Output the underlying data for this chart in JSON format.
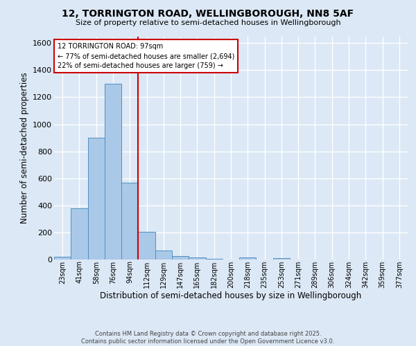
{
  "title": "12, TORRINGTON ROAD, WELLINGBOROUGH, NN8 5AF",
  "subtitle": "Size of property relative to semi-detached houses in Wellingborough",
  "xlabel": "Distribution of semi-detached houses by size in Wellingborough",
  "ylabel": "Number of semi-detached properties",
  "footer_line1": "Contains HM Land Registry data © Crown copyright and database right 2025.",
  "footer_line2": "Contains public sector information licensed under the Open Government Licence v3.0.",
  "bin_labels": [
    "23sqm",
    "41sqm",
    "58sqm",
    "76sqm",
    "94sqm",
    "112sqm",
    "129sqm",
    "147sqm",
    "165sqm",
    "182sqm",
    "200sqm",
    "218sqm",
    "235sqm",
    "253sqm",
    "271sqm",
    "289sqm",
    "306sqm",
    "324sqm",
    "342sqm",
    "359sqm",
    "377sqm"
  ],
  "bin_values": [
    18,
    380,
    900,
    1300,
    570,
    205,
    65,
    28,
    15,
    5,
    0,
    13,
    0,
    8,
    0,
    0,
    0,
    0,
    0,
    0,
    0
  ],
  "bar_color": "#aac8e8",
  "bar_edge_color": "#5090c0",
  "annotation_title": "12 TORRINGTON ROAD: 97sqm",
  "annotation_smaller": "← 77% of semi-detached houses are smaller (2,694)",
  "annotation_larger": "22% of semi-detached houses are larger (759) →",
  "annotation_box_color": "#ffffff",
  "annotation_box_edge": "#cc0000",
  "ylim": [
    0,
    1650
  ],
  "yticks": [
    0,
    200,
    400,
    600,
    800,
    1000,
    1200,
    1400,
    1600
  ],
  "background_color": "#dce8f5",
  "grid_color": "#ffffff",
  "red_line_color": "#cc0000",
  "red_line_bin_index": 4,
  "bar_width": 1.0
}
